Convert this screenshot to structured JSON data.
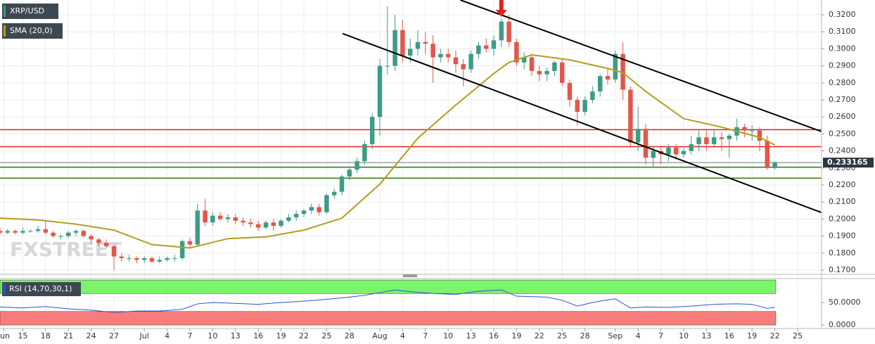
{
  "chart_data": {
    "type": "candlestick",
    "symbol": "XRP/USD",
    "watermark": "FXSTREET",
    "last_price": {
      "value": 0.233165,
      "label": "0.233165"
    },
    "up_color": "#3e9b86",
    "down_color": "#e1574a",
    "x": [
      0,
      1,
      2,
      3,
      4,
      5,
      6,
      7,
      8,
      9,
      10,
      11,
      12,
      13,
      14,
      15,
      16,
      17,
      18,
      19,
      20,
      21,
      22,
      23,
      24,
      25,
      26,
      27,
      28,
      29,
      30,
      31,
      32,
      33,
      34,
      35,
      36,
      37,
      38,
      39,
      40,
      41,
      42,
      43,
      44,
      45,
      46,
      47,
      48,
      49,
      50,
      51,
      52,
      53,
      54,
      55,
      56,
      57,
      58,
      59,
      60,
      61,
      62,
      63,
      64,
      65,
      66,
      67,
      68,
      69,
      70,
      71,
      72,
      73,
      74,
      75,
      76,
      77,
      78,
      79,
      80,
      81,
      82,
      83,
      84,
      85,
      86,
      87,
      88,
      89,
      90,
      91,
      92,
      93,
      94,
      95,
      96,
      97,
      98,
      99,
      100,
      101,
      102
    ],
    "ohlc": [
      [
        0.193,
        0.195,
        0.191,
        0.192
      ],
      [
        0.192,
        0.194,
        0.191,
        0.193
      ],
      [
        0.193,
        0.194,
        0.191,
        0.192
      ],
      [
        0.192,
        0.195,
        0.191,
        0.193
      ],
      [
        0.193,
        0.194,
        0.192,
        0.193
      ],
      [
        0.193,
        0.196,
        0.192,
        0.194
      ],
      [
        0.194,
        0.199,
        0.191,
        0.192
      ],
      [
        0.192,
        0.193,
        0.189,
        0.19
      ],
      [
        0.19,
        0.191,
        0.188,
        0.19
      ],
      [
        0.19,
        0.193,
        0.189,
        0.192
      ],
      [
        0.192,
        0.194,
        0.19,
        0.193
      ],
      [
        0.193,
        0.194,
        0.189,
        0.19
      ],
      [
        0.19,
        0.191,
        0.186,
        0.188
      ],
      [
        0.188,
        0.189,
        0.184,
        0.186
      ],
      [
        0.186,
        0.188,
        0.183,
        0.184
      ],
      [
        0.184,
        0.185,
        0.17,
        0.178
      ],
      [
        0.178,
        0.18,
        0.175,
        0.177
      ],
      [
        0.177,
        0.179,
        0.175,
        0.177
      ],
      [
        0.177,
        0.178,
        0.174,
        0.176
      ],
      [
        0.176,
        0.178,
        0.174,
        0.177
      ],
      [
        0.177,
        0.178,
        0.174,
        0.175
      ],
      [
        0.175,
        0.178,
        0.174,
        0.176
      ],
      [
        0.176,
        0.178,
        0.175,
        0.177
      ],
      [
        0.177,
        0.179,
        0.175,
        0.177
      ],
      [
        0.177,
        0.188,
        0.176,
        0.187
      ],
      [
        0.187,
        0.189,
        0.183,
        0.185
      ],
      [
        0.185,
        0.209,
        0.184,
        0.205
      ],
      [
        0.205,
        0.212,
        0.196,
        0.198
      ],
      [
        0.198,
        0.204,
        0.196,
        0.202
      ],
      [
        0.202,
        0.204,
        0.199,
        0.2
      ],
      [
        0.2,
        0.203,
        0.198,
        0.201
      ],
      [
        0.201,
        0.203,
        0.197,
        0.199
      ],
      [
        0.199,
        0.201,
        0.196,
        0.198
      ],
      [
        0.198,
        0.2,
        0.195,
        0.197
      ],
      [
        0.197,
        0.199,
        0.193,
        0.195
      ],
      [
        0.195,
        0.199,
        0.194,
        0.198
      ],
      [
        0.198,
        0.2,
        0.193,
        0.196
      ],
      [
        0.196,
        0.2,
        0.195,
        0.199
      ],
      [
        0.199,
        0.203,
        0.198,
        0.201
      ],
      [
        0.201,
        0.205,
        0.199,
        0.203
      ],
      [
        0.203,
        0.206,
        0.201,
        0.205
      ],
      [
        0.205,
        0.209,
        0.203,
        0.207
      ],
      [
        0.207,
        0.209,
        0.202,
        0.204
      ],
      [
        0.204,
        0.215,
        0.203,
        0.214
      ],
      [
        0.214,
        0.218,
        0.212,
        0.216
      ],
      [
        0.216,
        0.226,
        0.214,
        0.225
      ],
      [
        0.225,
        0.231,
        0.223,
        0.229
      ],
      [
        0.229,
        0.236,
        0.227,
        0.234
      ],
      [
        0.234,
        0.246,
        0.232,
        0.244
      ],
      [
        0.244,
        0.262,
        0.241,
        0.26
      ],
      [
        0.26,
        0.294,
        0.249,
        0.29
      ],
      [
        0.29,
        0.325,
        0.285,
        0.29
      ],
      [
        0.29,
        0.32,
        0.287,
        0.311
      ],
      [
        0.311,
        0.317,
        0.292,
        0.296
      ],
      [
        0.296,
        0.306,
        0.292,
        0.3
      ],
      [
        0.3,
        0.311,
        0.296,
        0.304
      ],
      [
        0.304,
        0.31,
        0.297,
        0.303
      ],
      [
        0.303,
        0.308,
        0.28,
        0.295
      ],
      [
        0.295,
        0.3,
        0.292,
        0.297
      ],
      [
        0.297,
        0.3,
        0.292,
        0.295
      ],
      [
        0.295,
        0.299,
        0.286,
        0.291
      ],
      [
        0.291,
        0.294,
        0.278,
        0.288
      ],
      [
        0.288,
        0.299,
        0.286,
        0.297
      ],
      [
        0.297,
        0.304,
        0.294,
        0.302
      ],
      [
        0.302,
        0.306,
        0.298,
        0.3
      ],
      [
        0.3,
        0.308,
        0.296,
        0.305
      ],
      [
        0.305,
        0.318,
        0.301,
        0.316
      ],
      [
        0.316,
        0.32,
        0.301,
        0.304
      ],
      [
        0.304,
        0.306,
        0.29,
        0.292
      ],
      [
        0.292,
        0.298,
        0.288,
        0.295
      ],
      [
        0.295,
        0.297,
        0.284,
        0.287
      ],
      [
        0.287,
        0.29,
        0.281,
        0.285
      ],
      [
        0.285,
        0.289,
        0.281,
        0.287
      ],
      [
        0.287,
        0.293,
        0.284,
        0.292
      ],
      [
        0.292,
        0.294,
        0.278,
        0.28
      ],
      [
        0.28,
        0.282,
        0.266,
        0.27
      ],
      [
        0.27,
        0.272,
        0.255,
        0.263
      ],
      [
        0.263,
        0.272,
        0.261,
        0.27
      ],
      [
        0.27,
        0.278,
        0.268,
        0.275
      ],
      [
        0.275,
        0.285,
        0.272,
        0.284
      ],
      [
        0.284,
        0.288,
        0.279,
        0.282
      ],
      [
        0.282,
        0.299,
        0.28,
        0.297
      ],
      [
        0.297,
        0.304,
        0.27,
        0.276
      ],
      [
        0.276,
        0.278,
        0.242,
        0.245
      ],
      [
        0.245,
        0.266,
        0.24,
        0.253
      ],
      [
        0.253,
        0.256,
        0.232,
        0.236
      ],
      [
        0.236,
        0.243,
        0.231,
        0.24
      ],
      [
        0.24,
        0.243,
        0.232,
        0.238
      ],
      [
        0.238,
        0.244,
        0.234,
        0.242
      ],
      [
        0.242,
        0.244,
        0.235,
        0.238
      ],
      [
        0.238,
        0.242,
        0.236,
        0.24
      ],
      [
        0.24,
        0.249,
        0.238,
        0.244
      ],
      [
        0.244,
        0.252,
        0.24,
        0.248
      ],
      [
        0.248,
        0.252,
        0.24,
        0.244
      ],
      [
        0.244,
        0.252,
        0.242,
        0.248
      ],
      [
        0.248,
        0.251,
        0.24,
        0.247
      ],
      [
        0.247,
        0.25,
        0.236,
        0.249
      ],
      [
        0.249,
        0.259,
        0.246,
        0.254
      ],
      [
        0.254,
        0.256,
        0.248,
        0.252
      ],
      [
        0.252,
        0.255,
        0.246,
        0.252
      ],
      [
        0.252,
        0.254,
        0.24,
        0.246
      ],
      [
        0.246,
        0.249,
        0.229,
        0.23
      ],
      [
        0.23,
        0.234,
        0.229,
        0.233165
      ]
    ],
    "sma": {
      "name": "SMA (20,0)",
      "color": "#b49c1e",
      "x": [
        0,
        5,
        10,
        15,
        20,
        25,
        30,
        35,
        40,
        45,
        50,
        55,
        60,
        65,
        67,
        70,
        75,
        80,
        82,
        85,
        90,
        95,
        100,
        102
      ],
      "values": [
        0.2005,
        0.1995,
        0.197,
        0.1935,
        0.185,
        0.183,
        0.1885,
        0.1895,
        0.1935,
        0.2005,
        0.2205,
        0.2475,
        0.267,
        0.2855,
        0.292,
        0.2965,
        0.2935,
        0.2885,
        0.286,
        0.275,
        0.259,
        0.254,
        0.248,
        0.2435
      ]
    },
    "levels": [
      {
        "value": 0.2525,
        "color": "#e3221b"
      },
      {
        "value": 0.2425,
        "color": "#e3221b"
      },
      {
        "value": 0.2305,
        "color": "#2f7d12"
      },
      {
        "value": 0.224,
        "color": "#2f7d12"
      }
    ],
    "trendlines": [
      {
        "x": [
          60.6,
          108.1
        ],
        "values": [
          0.3287,
          0.2515
        ]
      },
      {
        "x": [
          45.1,
          108.1
        ],
        "values": [
          0.30897,
          0.2039
        ]
      }
    ],
    "arrow": {
      "x": 66,
      "color": "#e3221b"
    },
    "xlim": [
      0,
      108.15
    ],
    "ylim": [
      0.1675,
      0.3287
    ],
    "yticks": [
      {
        "value": 0.17,
        "label": "0.1700"
      },
      {
        "value": 0.18,
        "label": "0.1800"
      },
      {
        "value": 0.19,
        "label": "0.1900"
      },
      {
        "value": 0.2,
        "label": "0.2000"
      },
      {
        "value": 0.21,
        "label": "0.2100"
      },
      {
        "value": 0.22,
        "label": "0.2200"
      },
      {
        "value": 0.23,
        "label": "0.2300"
      },
      {
        "value": 0.24,
        "label": "0.2400"
      },
      {
        "value": 0.25,
        "label": "0.2500"
      },
      {
        "value": 0.26,
        "label": "0.2600"
      },
      {
        "value": 0.27,
        "label": "0.2700"
      },
      {
        "value": 0.28,
        "label": "0.2800"
      },
      {
        "value": 0.29,
        "label": "0.2900"
      },
      {
        "value": 0.3,
        "label": "0.3000"
      },
      {
        "value": 0.31,
        "label": "0.3100"
      },
      {
        "value": 0.32,
        "label": "0.3200"
      }
    ],
    "xticks": [
      {
        "value": 0.5,
        "label": "Jun"
      },
      {
        "value": 3,
        "label": "15"
      },
      {
        "value": 6,
        "label": "18"
      },
      {
        "value": 9,
        "label": "21"
      },
      {
        "value": 12,
        "label": "24"
      },
      {
        "value": 15,
        "label": "27"
      },
      {
        "value": 19,
        "label": "Jul"
      },
      {
        "value": 22,
        "label": "4"
      },
      {
        "value": 25,
        "label": "7"
      },
      {
        "value": 28,
        "label": "10"
      },
      {
        "value": 31,
        "label": "13"
      },
      {
        "value": 34,
        "label": "16"
      },
      {
        "value": 37,
        "label": "19"
      },
      {
        "value": 40,
        "label": "22"
      },
      {
        "value": 43,
        "label": "25"
      },
      {
        "value": 46,
        "label": "28"
      },
      {
        "value": 50,
        "label": "Aug"
      },
      {
        "value": 53,
        "label": "4"
      },
      {
        "value": 56,
        "label": "7"
      },
      {
        "value": 59,
        "label": "10"
      },
      {
        "value": 62,
        "label": "13"
      },
      {
        "value": 65,
        "label": "16"
      },
      {
        "value": 68,
        "label": "19"
      },
      {
        "value": 71,
        "label": "22"
      },
      {
        "value": 74,
        "label": "25"
      },
      {
        "value": 77,
        "label": "28"
      },
      {
        "value": 81,
        "label": "Sep"
      },
      {
        "value": 84,
        "label": "4"
      },
      {
        "value": 87,
        "label": "7"
      },
      {
        "value": 90,
        "label": "10"
      },
      {
        "value": 93,
        "label": "13"
      },
      {
        "value": 96,
        "label": "16"
      },
      {
        "value": 99,
        "label": "19"
      },
      {
        "value": 102,
        "label": "22"
      },
      {
        "value": 105,
        "label": "25"
      }
    ],
    "grid": true,
    "rsi": {
      "name": "RSI (14,70,30,1)",
      "color": "#2f4fd8",
      "x": [
        0,
        3,
        6,
        9,
        12,
        15,
        18,
        21,
        24,
        26,
        28,
        31,
        34,
        37,
        40,
        43,
        46,
        48,
        50,
        52,
        54,
        57,
        60,
        63,
        66,
        68,
        70,
        72,
        74,
        76,
        78,
        80,
        81,
        83,
        85,
        88,
        91,
        94,
        97,
        99,
        101,
        102
      ],
      "values": [
        40,
        38,
        41,
        36,
        33,
        28,
        31,
        31,
        35,
        47,
        50,
        48,
        46,
        50,
        53,
        57,
        62,
        66,
        72,
        78,
        74,
        70,
        68,
        75,
        78,
        64,
        63,
        62,
        55,
        42,
        50,
        56,
        58,
        38,
        40,
        39,
        42,
        46,
        47,
        46,
        37,
        39
      ],
      "ylim": [
        -7.8,
        101.6
      ],
      "yticks": [
        {
          "value": 0,
          "label": "0.0000"
        },
        {
          "value": 50,
          "label": "50.0000"
        }
      ],
      "bands": [
        {
          "range": [
            70,
            100
          ],
          "color": "#7df26c"
        },
        {
          "range": [
            0,
            30
          ],
          "color": "#f77d7d"
        }
      ]
    }
  }
}
